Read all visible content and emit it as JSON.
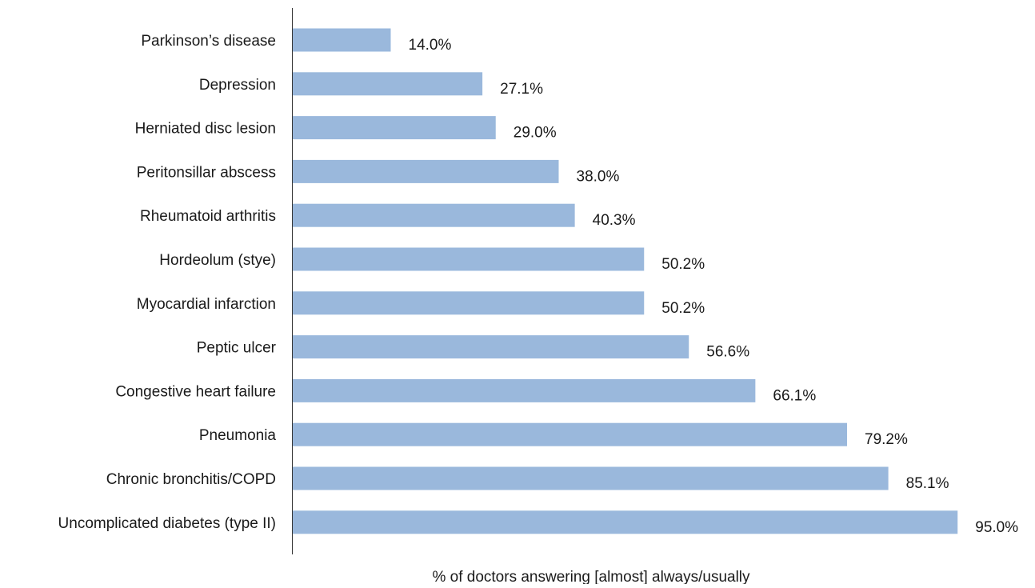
{
  "chart_data": {
    "type": "bar",
    "orientation": "horizontal",
    "categories": [
      "Parkinson’s disease",
      "Depression",
      "Herniated disc lesion",
      "Peritonsillar abscess",
      "Rheumatoid arthritis",
      "Hordeolum (stye)",
      "Myocardial infarction",
      "Peptic ulcer",
      "Congestive heart failure",
      "Pneumonia",
      "Chronic bronchitis/COPD",
      "Uncomplicated diabetes (type II)"
    ],
    "values": [
      14.0,
      27.1,
      29.0,
      38.0,
      40.3,
      50.2,
      50.2,
      56.6,
      66.1,
      79.2,
      85.1,
      95.0
    ],
    "value_labels": [
      "14.0%",
      "27.1%",
      "29.0%",
      "38.0%",
      "40.3%",
      "50.2%",
      "50.2%",
      "56.6%",
      "66.1%",
      "79.2%",
      "85.1%",
      "95.0%"
    ],
    "xlabel": "% of doctors answering [almost] always/usually",
    "ylabel": "",
    "xlim": [
      0,
      100
    ],
    "grid": false,
    "legend": "none",
    "bar_color": "#9ab8dc",
    "axis_color": "#333333"
  }
}
